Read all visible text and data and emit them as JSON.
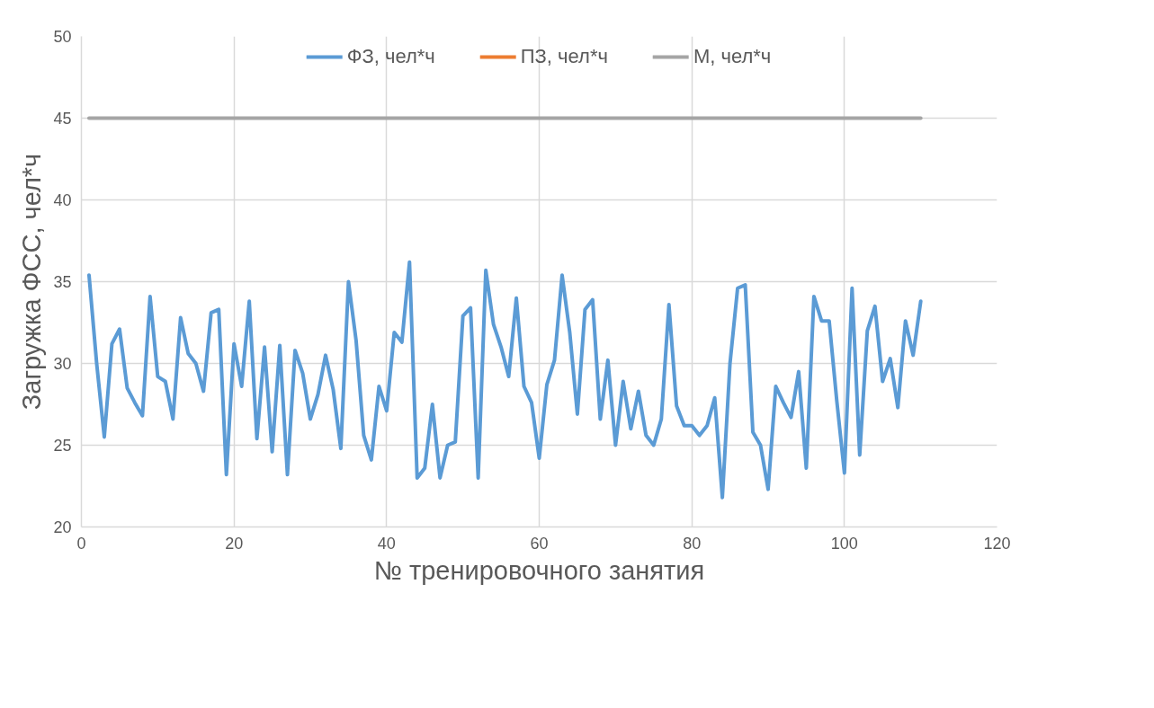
{
  "chart_data": {
    "type": "line",
    "xlabel": "№ тренировочного занятия",
    "ylabel": "Загружка ФСС, чел*ч",
    "xlim": [
      0,
      120
    ],
    "xticks": [
      0,
      20,
      40,
      60,
      80,
      100,
      120
    ],
    "ylim": [
      20,
      50
    ],
    "yticks": [
      20,
      25,
      30,
      35,
      40,
      45,
      50
    ],
    "grid": true,
    "legend": "top",
    "line_style": "solid",
    "marker": "none",
    "x": [
      1,
      2,
      3,
      4,
      5,
      6,
      7,
      8,
      9,
      10,
      11,
      12,
      13,
      14,
      15,
      16,
      17,
      18,
      19,
      20,
      21,
      22,
      23,
      24,
      25,
      26,
      27,
      28,
      29,
      30,
      31,
      32,
      33,
      34,
      35,
      36,
      37,
      38,
      39,
      40,
      41,
      42,
      43,
      44,
      45,
      46,
      47,
      48,
      49,
      50,
      51,
      52,
      53,
      54,
      55,
      56,
      57,
      58,
      59,
      60,
      61,
      62,
      63,
      64,
      65,
      66,
      67,
      68,
      69,
      70,
      71,
      72,
      73,
      74,
      75,
      76,
      77,
      78,
      79,
      80,
      81,
      82,
      83,
      84,
      85,
      86,
      87,
      88,
      89,
      90,
      91,
      92,
      93,
      94,
      95,
      96,
      97,
      98,
      99,
      100,
      101,
      102,
      103,
      104,
      105,
      106,
      107,
      108,
      109,
      110
    ],
    "series": [
      {
        "name": "ФЗ, чел*ч",
        "color": "#5b9bd5",
        "values": [
          35.4,
          30,
          25.5,
          31.2,
          32.1,
          28.5,
          27.6,
          26.8,
          34.1,
          29.2,
          28.9,
          26.6,
          32.8,
          30.6,
          30,
          28.3,
          33.1,
          33.3,
          23.2,
          31.2,
          28.6,
          33.8,
          25.4,
          31,
          24.6,
          31.1,
          23.2,
          30.8,
          29.4,
          26.6,
          28.1,
          30.5,
          28.4,
          24.8,
          35,
          31.4,
          25.6,
          24.1,
          28.6,
          27.1,
          31.9,
          31.3,
          36.2,
          23,
          23.6,
          27.5,
          23,
          25,
          25.2,
          32.9,
          33.4,
          23,
          35.7,
          32.4,
          31,
          29.2,
          34,
          28.6,
          27.6,
          24.2,
          28.7,
          30.2,
          35.4,
          31.9,
          26.9,
          33.3,
          33.9,
          26.6,
          30.2,
          25,
          28.9,
          26,
          28.3,
          25.6,
          25,
          26.6,
          33.6,
          27.4,
          26.2,
          26.2,
          25.6,
          26.2,
          27.9,
          21.8,
          30,
          34.6,
          34.8,
          25.8,
          25,
          22.3,
          28.6,
          27.6,
          26.7,
          29.5,
          23.6,
          34.1,
          32.6,
          32.6,
          27.7,
          23.3,
          34.6,
          24.4,
          32,
          33.5,
          28.9,
          30.3,
          27.3,
          32.6,
          30.5,
          33.8
        ]
      },
      {
        "name": "ПЗ, чел*ч",
        "color": "#ed7d31",
        "values": [
          null,
          null,
          null,
          null,
          null,
          null,
          null,
          null,
          null,
          null,
          null,
          null,
          null,
          null,
          null,
          null,
          null,
          null,
          null,
          null,
          null,
          null,
          null,
          null,
          null,
          null,
          null,
          null,
          null,
          null,
          null,
          null,
          null,
          null,
          null,
          null,
          null,
          null,
          null,
          null,
          null,
          null,
          null,
          null,
          null,
          null,
          null,
          null,
          null,
          null,
          null,
          null,
          null,
          null,
          null,
          null,
          null,
          null,
          null,
          null,
          null,
          null,
          null,
          null,
          null,
          null,
          null,
          null,
          null,
          null,
          null,
          null,
          null,
          null,
          null,
          null,
          null,
          null,
          null,
          null,
          null,
          null,
          null,
          null,
          null,
          null,
          null,
          null,
          null,
          null,
          null,
          null,
          null,
          null,
          null,
          null,
          null,
          null,
          null,
          null,
          null,
          null,
          null,
          null,
          null,
          null,
          null,
          null,
          null,
          null
        ]
      },
      {
        "name": "М, чел*ч",
        "color": "#a5a5a5",
        "x": [
          1,
          110
        ],
        "values": [
          45,
          45
        ]
      }
    ]
  }
}
